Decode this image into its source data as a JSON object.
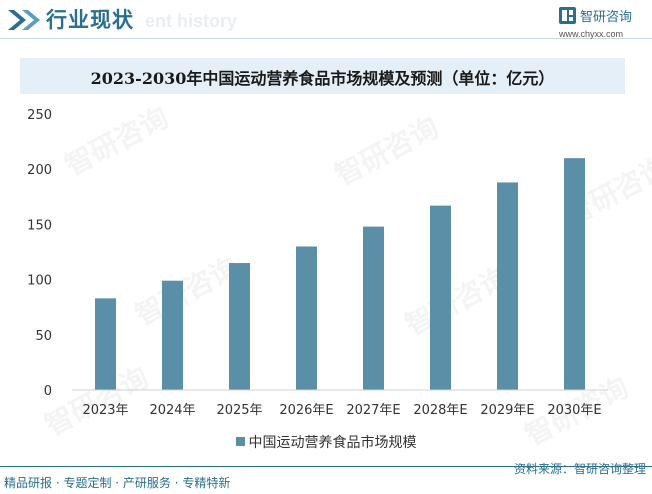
{
  "header": {
    "title": "行业现状",
    "subtitle_faint": "ent history"
  },
  "brand": {
    "name": "智研咨询",
    "url": "www.chyxx.com"
  },
  "watermark": "智研咨询",
  "chart_data": {
    "type": "bar",
    "title": "2023-2030年中国运动营养食品市场规模及预测（单位：亿元）",
    "categories": [
      "2023年",
      "2024年",
      "2025年",
      "2026年E",
      "2027年E",
      "2028年E",
      "2029年E",
      "2030年E"
    ],
    "series": [
      {
        "name": "中国运动营养食品市场规模",
        "values": [
          83,
          99,
          115,
          130,
          148,
          167,
          188,
          210
        ],
        "color": "#5b8fa8"
      }
    ],
    "ylim": [
      0,
      250
    ],
    "yticks": [
      0,
      50,
      100,
      150,
      200,
      250
    ],
    "xlabel": "",
    "ylabel": "",
    "legend": "bottom-center",
    "grid": false
  },
  "footer": {
    "left": "精品研报 · 专题定制 · 产研服务 · 专精特新",
    "right": "资料来源：智研咨询整理"
  }
}
